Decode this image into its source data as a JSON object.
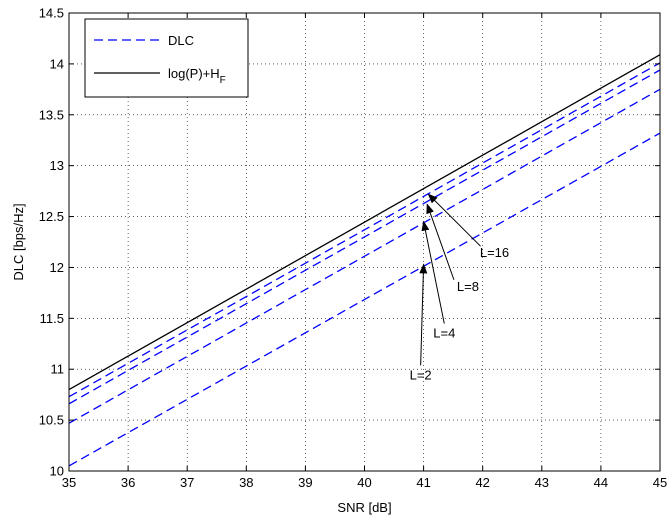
{
  "chart_data": {
    "type": "line",
    "xlabel": "SNR [dB]",
    "ylabel": "DLC [bps/Hz]",
    "xlim": [
      35,
      45
    ],
    "ylim": [
      10,
      14.5
    ],
    "xticks": [
      "35",
      "36",
      "37",
      "38",
      "39",
      "40",
      "41",
      "42",
      "43",
      "44",
      "45"
    ],
    "yticks": [
      "10",
      "10.5",
      "11",
      "11.5",
      "12",
      "12.5",
      "13",
      "13.5",
      "14",
      "14.5"
    ],
    "grid": true,
    "legend_position": "top-left",
    "legend": [
      {
        "label": "DLC",
        "style": "dashed",
        "color": "#0000ff"
      },
      {
        "label": "log(P)+H",
        "subscript": "F",
        "style": "solid",
        "color": "#000000"
      }
    ],
    "series": [
      {
        "legend_label": "DLC",
        "tag": "L=2",
        "x": [
          35,
          45
        ],
        "y": [
          10.05,
          13.32
        ],
        "style": "dashed",
        "color": "#0000ff"
      },
      {
        "legend_label": "DLC",
        "tag": "L=4",
        "x": [
          35,
          45
        ],
        "y": [
          10.47,
          13.75
        ],
        "style": "dashed",
        "color": "#0000ff"
      },
      {
        "legend_label": "DLC",
        "tag": "L=8",
        "x": [
          35,
          45
        ],
        "y": [
          10.66,
          13.94
        ],
        "style": "dashed",
        "color": "#0000ff"
      },
      {
        "legend_label": "DLC",
        "tag": "L=16",
        "x": [
          35,
          45
        ],
        "y": [
          10.73,
          14.01
        ],
        "style": "dashed",
        "color": "#0000ff"
      },
      {
        "legend_label": "log(P)+H_F",
        "x": [
          35,
          45
        ],
        "y": [
          10.8,
          14.09
        ],
        "style": "solid",
        "color": "#000000"
      }
    ],
    "annotations": [
      {
        "text": "L=2",
        "arrow_to": [
          41.0,
          12.03
        ],
        "text_at": [
          40.95,
          10.95
        ]
      },
      {
        "text": "L=4",
        "arrow_to": [
          41.0,
          12.45
        ],
        "text_at": [
          41.35,
          11.36
        ]
      },
      {
        "text": "L=8",
        "arrow_to": [
          41.06,
          12.62
        ],
        "text_at": [
          41.75,
          11.82
        ]
      },
      {
        "text": "L=16",
        "arrow_to": [
          41.08,
          12.72
        ],
        "text_at": [
          42.2,
          12.15
        ]
      }
    ]
  }
}
